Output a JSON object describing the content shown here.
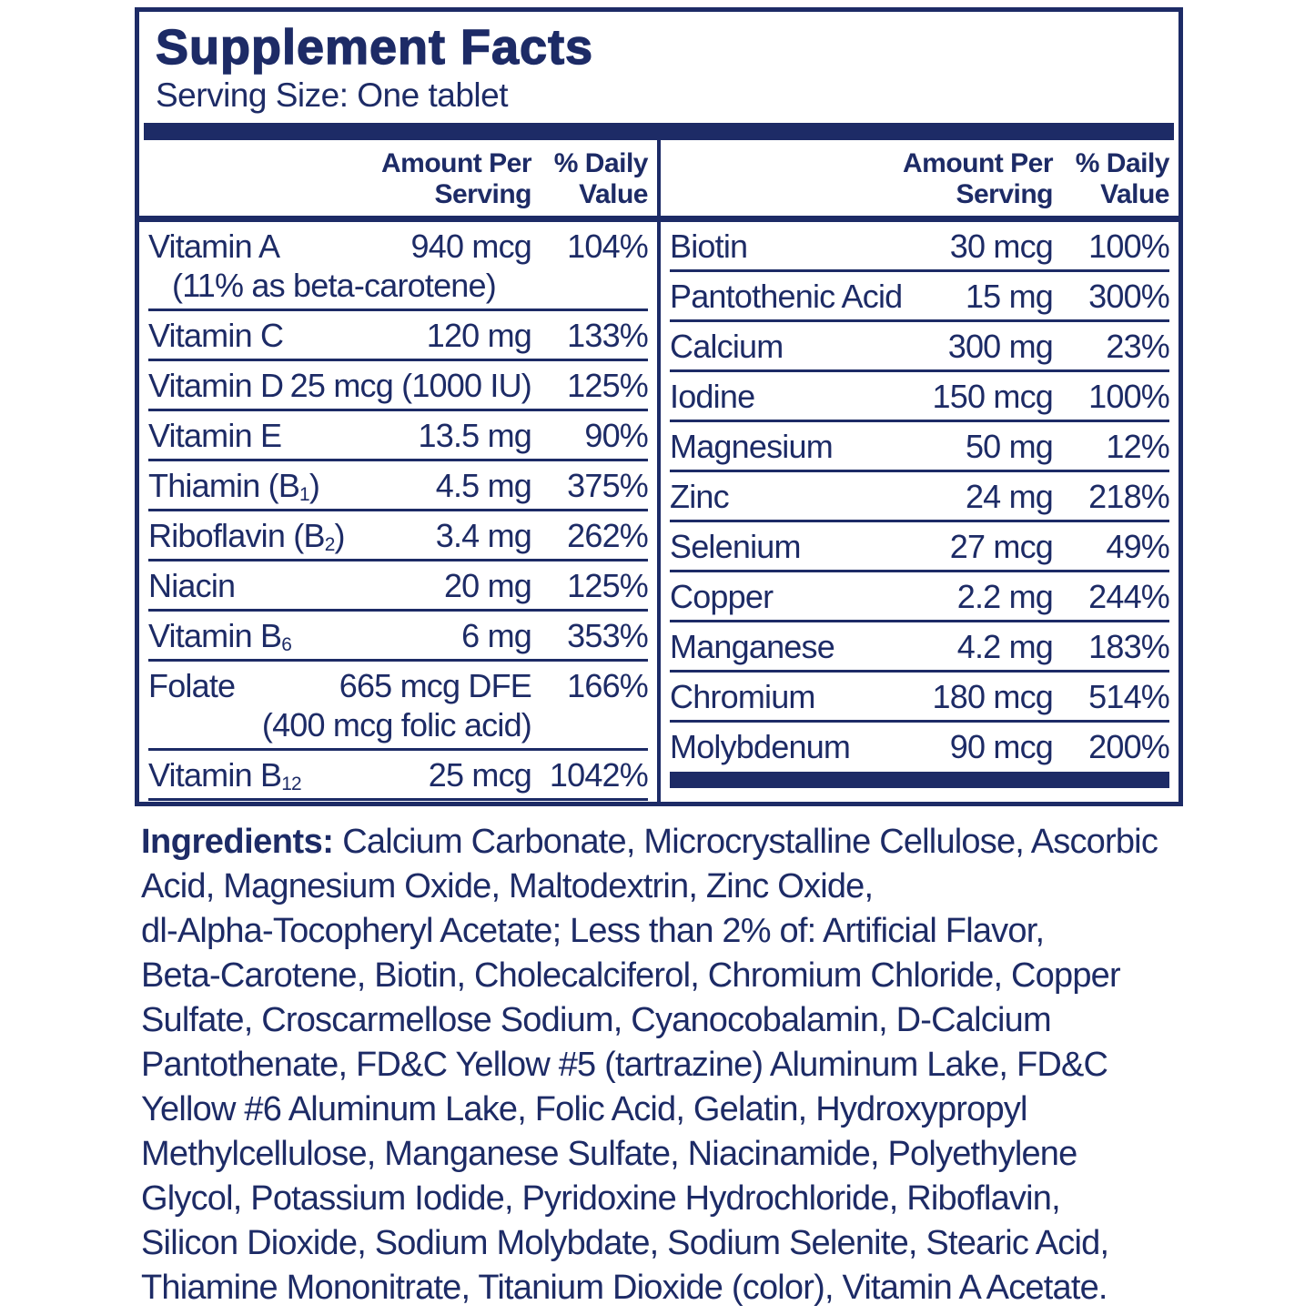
{
  "colors": {
    "navy": "#1d2b66"
  },
  "header": {
    "title": "Supplement Facts",
    "serving_size": "Serving Size: One tablet"
  },
  "table": {
    "col_headers": {
      "amount": "Amount Per Serving",
      "daily": "% Daily Value"
    },
    "left_rows": [
      {
        "name": "Vitamin A",
        "amount": "940 mcg",
        "dv": "104%",
        "note": "(11% as beta-carotene)",
        "note_align": "left"
      },
      {
        "name": "Vitamin C",
        "amount": "120 mg",
        "dv": "133%"
      },
      {
        "name": "Vitamin D",
        "amount": "25 mcg (1000 IU)",
        "dv": "125%"
      },
      {
        "name": "Vitamin E",
        "amount": "13.5 mg",
        "dv": "90%"
      },
      {
        "name": "Thiamin (B_{1})",
        "amount": "4.5 mg",
        "dv": "375%"
      },
      {
        "name": "Riboflavin (B_{2})",
        "amount": "3.4 mg",
        "dv": "262%"
      },
      {
        "name": "Niacin",
        "amount": "20 mg",
        "dv": "125%"
      },
      {
        "name": "Vitamin B_{6}",
        "amount": "6 mg",
        "dv": "353%"
      },
      {
        "name": "Folate",
        "amount": "665 mcg DFE",
        "dv": "166%",
        "note": "(400 mcg folic acid)",
        "note_align": "right"
      },
      {
        "name": "Vitamin B_{12}",
        "amount": "25 mcg",
        "dv": "1042%"
      }
    ],
    "right_rows": [
      {
        "name": "Biotin",
        "amount": "30 mcg",
        "dv": "100%"
      },
      {
        "name": "Pantothenic Acid",
        "amount": "15 mg",
        "dv": "300%"
      },
      {
        "name": "Calcium",
        "amount": "300 mg",
        "dv": "23%"
      },
      {
        "name": "Iodine",
        "amount": "150 mcg",
        "dv": "100%"
      },
      {
        "name": "Magnesium",
        "amount": "50 mg",
        "dv": "12%"
      },
      {
        "name": "Zinc",
        "amount": "24 mg",
        "dv": "218%"
      },
      {
        "name": "Selenium",
        "amount": "27 mcg",
        "dv": "49%"
      },
      {
        "name": "Copper",
        "amount": "2.2 mg",
        "dv": "244%"
      },
      {
        "name": "Manganese",
        "amount": "4.2 mg",
        "dv": "183%"
      },
      {
        "name": "Chromium",
        "amount": "180 mcg",
        "dv": "514%"
      },
      {
        "name": "Molybdenum",
        "amount": "90 mcg",
        "dv": "200%"
      }
    ]
  },
  "ingredients": {
    "label": "Ingredients:",
    "lines": [
      "Calcium Carbonate, Microcrystalline Cellulose, Ascorbic",
      "Acid, Magnesium Oxide, Maltodextrin, Zinc Oxide,",
      "dl-Alpha-Tocopheryl Acetate; Less than 2% of: Artificial Flavor,",
      "Beta-Carotene, Biotin, Cholecalciferol, Chromium Chloride, Copper",
      "Sulfate, Croscarmellose Sodium, Cyanocobalamin, D-Calcium",
      "Pantothenate, FD&C Yellow #5 (tartrazine) Aluminum Lake, FD&C",
      "Yellow #6 Aluminum Lake, Folic Acid, Gelatin, Hydroxypropyl",
      "Methylcellulose, Manganese Sulfate, Niacinamide, Polyethylene",
      "Glycol, Potassium Iodide, Pyridoxine Hydrochloride, Riboflavin,",
      "Silicon Dioxide, Sodium Molybdate, Sodium Selenite, Stearic Acid,",
      "Thiamine Mononitrate, Titanium Dioxide (color), Vitamin A Acetate."
    ]
  }
}
